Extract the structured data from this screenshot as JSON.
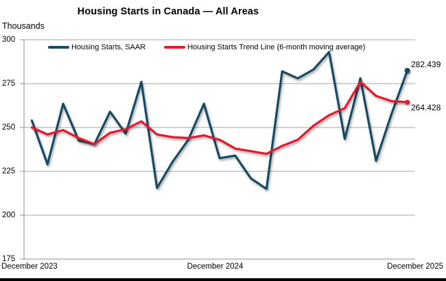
{
  "title": "Housing Starts in Canada — All Areas",
  "y_axis_title": "Thousands",
  "legend": {
    "items": [
      {
        "label": "Housing Starts, SAAR",
        "color": "#174a63"
      },
      {
        "label": "Housing Starts Trend Line (6-month moving average)",
        "color": "#e6192e"
      }
    ]
  },
  "chart_data": {
    "type": "line",
    "x": [
      "Dec 2023",
      "Jan 2024",
      "Feb 2024",
      "Mar 2024",
      "Apr 2024",
      "May 2024",
      "Jun 2024",
      "Jul 2024",
      "Aug 2024",
      "Sep 2024",
      "Oct 2024",
      "Nov 2024",
      "Dec 2024",
      "Jan 2025",
      "Feb 2025",
      "Mar 2025",
      "Apr 2025",
      "May 2025",
      "Jun 2025",
      "Jul 2025",
      "Aug 2025",
      "Sep 2025",
      "Oct 2025",
      "Nov 2025",
      "Dec 2025"
    ],
    "x_axis_tick_labels": [
      "December 2023",
      "December 2024",
      "December 2025"
    ],
    "ylim": [
      175,
      300
    ],
    "yticks": [
      300,
      275,
      250,
      225,
      200,
      175
    ],
    "grid": true,
    "legend_position": "top",
    "series": [
      {
        "name": "Housing Starts, SAAR",
        "color": "#174a63",
        "values": [
          254,
          229,
          263.5,
          242.5,
          240.5,
          259,
          246.5,
          276,
          215.5,
          230.5,
          243,
          263.5,
          232.5,
          234,
          221,
          215,
          282,
          278,
          283,
          293,
          243.5,
          278,
          231,
          258,
          282.439
        ],
        "end_label": "282.439",
        "end_marker": true
      },
      {
        "name": "Housing Starts Trend Line (6-month moving average)",
        "color": "#e6192e",
        "values": [
          250,
          246,
          248.5,
          244,
          240.5,
          247,
          249,
          253.5,
          246,
          244.5,
          244,
          245.5,
          243,
          238,
          236.5,
          235,
          239.5,
          243,
          251,
          257,
          261,
          276,
          268,
          265,
          264.428
        ],
        "end_label": "264.428",
        "end_marker": true
      }
    ]
  }
}
